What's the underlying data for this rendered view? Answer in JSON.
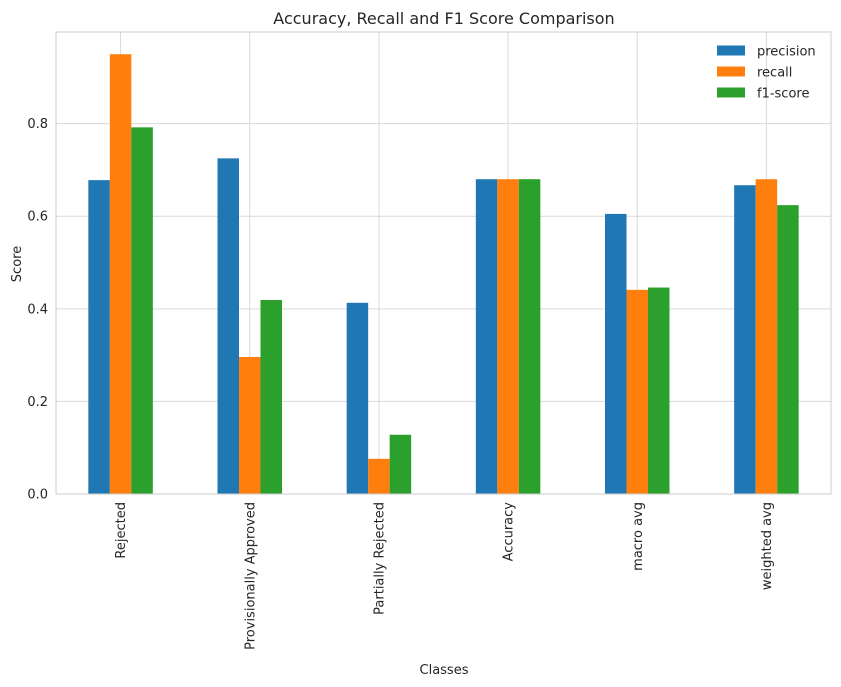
{
  "chart_data": {
    "type": "bar",
    "title": "Accuracy, Recall and F1 Score Comparison",
    "xlabel": "Classes",
    "ylabel": "Score",
    "categories": [
      "Rejected",
      "Provisionally Approved",
      "Partially Rejected",
      "Accuracy",
      "macro avg",
      "weighted avg"
    ],
    "series": [
      {
        "name": "precision",
        "color": "#1f77b4",
        "values": [
          0.678,
          0.725,
          0.413,
          0.68,
          0.605,
          0.667
        ]
      },
      {
        "name": "recall",
        "color": "#ff7f0e",
        "values": [
          0.95,
          0.296,
          0.076,
          0.68,
          0.441,
          0.68
        ]
      },
      {
        "name": "f1-score",
        "color": "#2ca02c",
        "values": [
          0.792,
          0.419,
          0.128,
          0.68,
          0.446,
          0.624
        ]
      }
    ],
    "ylim": [
      0,
      0.998
    ],
    "yticks": [
      0.0,
      0.2,
      0.4,
      0.6,
      0.8
    ],
    "ytick_labels": [
      "0.0",
      "0.2",
      "0.4",
      "0.6",
      "0.8"
    ],
    "grid": true,
    "legend_position": "top-right"
  }
}
